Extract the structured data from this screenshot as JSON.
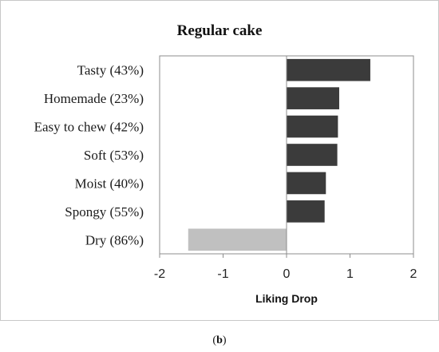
{
  "chart_data": {
    "type": "bar",
    "orientation": "horizontal",
    "title": "Regular cake",
    "xlabel": "Liking Drop",
    "ylabel": "",
    "categories": [
      "Tasty (43%)",
      "Homemade (23%)",
      "Easy to chew (42%)",
      "Soft (53%)",
      "Moist (40%)",
      "Spongy (55%)",
      "Dry (86%)"
    ],
    "values": [
      1.32,
      0.83,
      0.81,
      0.8,
      0.62,
      0.6,
      -1.55
    ],
    "bar_colors": [
      "#3b3b3b",
      "#3b3b3b",
      "#3b3b3b",
      "#3b3b3b",
      "#3b3b3b",
      "#3b3b3b",
      "#c0c0c0"
    ],
    "xlim": [
      -2,
      2
    ],
    "xticks": [
      -2,
      -1,
      0,
      1,
      2
    ],
    "grid": false,
    "legend": "none"
  },
  "caption": {
    "open": "(",
    "letter": "b",
    "close": ")"
  }
}
